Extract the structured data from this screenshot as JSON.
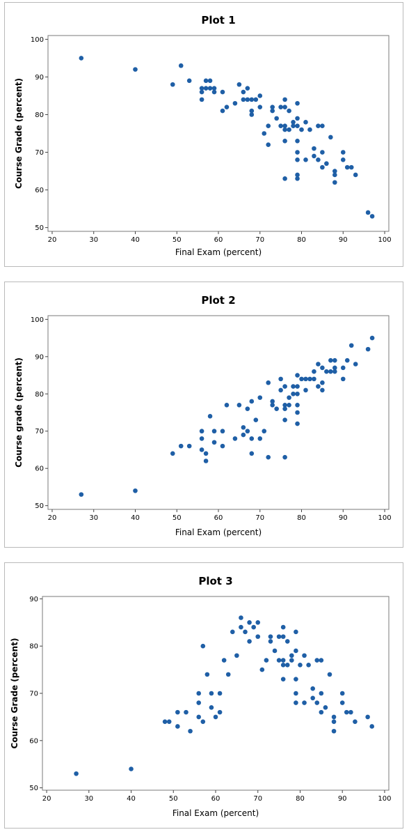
{
  "chart_data": [
    {
      "type": "scatter",
      "title": "Plot 1",
      "xlabel": "Final Exam (percent)",
      "ylabel": "Course Grade (percent)",
      "xlim": [
        19,
        101
      ],
      "ylim": [
        49,
        101
      ],
      "xticks": [
        "20",
        "30",
        "40",
        "50",
        "60",
        "70",
        "80",
        "90",
        "100"
      ],
      "yticks": [
        "50",
        "60",
        "70",
        "80",
        "90",
        "100"
      ],
      "color": "#1f5fa6",
      "points": [
        [
          27,
          95
        ],
        [
          40,
          92
        ],
        [
          49,
          88
        ],
        [
          51,
          93
        ],
        [
          53,
          89
        ],
        [
          56,
          87
        ],
        [
          56,
          86
        ],
        [
          56,
          84
        ],
        [
          57,
          87
        ],
        [
          57,
          89
        ],
        [
          58,
          89
        ],
        [
          58,
          87
        ],
        [
          59,
          87
        ],
        [
          59,
          86
        ],
        [
          61,
          86
        ],
        [
          61,
          81
        ],
        [
          62,
          82
        ],
        [
          64,
          83
        ],
        [
          65,
          88
        ],
        [
          66,
          86
        ],
        [
          66,
          84
        ],
        [
          67,
          87
        ],
        [
          67,
          84
        ],
        [
          68,
          84
        ],
        [
          68,
          81
        ],
        [
          68,
          80
        ],
        [
          69,
          84
        ],
        [
          70,
          85
        ],
        [
          70,
          82
        ],
        [
          71,
          75
        ],
        [
          72,
          72
        ],
        [
          72,
          77
        ],
        [
          73,
          82
        ],
        [
          73,
          81
        ],
        [
          74,
          79
        ],
        [
          75,
          77
        ],
        [
          75,
          82
        ],
        [
          76,
          84
        ],
        [
          76,
          82
        ],
        [
          76,
          77
        ],
        [
          76,
          76
        ],
        [
          76,
          73
        ],
        [
          76,
          63
        ],
        [
          77,
          81
        ],
        [
          77,
          76
        ],
        [
          78,
          77
        ],
        [
          78,
          78
        ],
        [
          79,
          83
        ],
        [
          79,
          79
        ],
        [
          79,
          77
        ],
        [
          79,
          73
        ],
        [
          79,
          70
        ],
        [
          79,
          68
        ],
        [
          79,
          64
        ],
        [
          79,
          63
        ],
        [
          80,
          76
        ],
        [
          81,
          78
        ],
        [
          81,
          68
        ],
        [
          82,
          76
        ],
        [
          83,
          71
        ],
        [
          83,
          69
        ],
        [
          84,
          77
        ],
        [
          84,
          68
        ],
        [
          85,
          77
        ],
        [
          85,
          70
        ],
        [
          85,
          66
        ],
        [
          86,
          67
        ],
        [
          87,
          74
        ],
        [
          88,
          65
        ],
        [
          88,
          64
        ],
        [
          88,
          62
        ],
        [
          90,
          70
        ],
        [
          90,
          68
        ],
        [
          91,
          66
        ],
        [
          92,
          66
        ],
        [
          93,
          64
        ],
        [
          96,
          54
        ],
        [
          97,
          53
        ]
      ]
    },
    {
      "type": "scatter",
      "title": "Plot 2",
      "xlabel": "Final Exam (percent)",
      "ylabel": "Course grade (percent)",
      "xlim": [
        19,
        101
      ],
      "ylim": [
        49,
        101
      ],
      "xticks": [
        "20",
        "30",
        "40",
        "50",
        "60",
        "70",
        "80",
        "90",
        "100"
      ],
      "yticks": [
        "50",
        "60",
        "70",
        "80",
        "90",
        "100"
      ],
      "color": "#1f5fa6",
      "points": [
        [
          27,
          53
        ],
        [
          40,
          54
        ],
        [
          49,
          64
        ],
        [
          51,
          66
        ],
        [
          53,
          66
        ],
        [
          56,
          70
        ],
        [
          56,
          68
        ],
        [
          56,
          65
        ],
        [
          57,
          64
        ],
        [
          57,
          62
        ],
        [
          58,
          74
        ],
        [
          59,
          70
        ],
        [
          59,
          67
        ],
        [
          61,
          70
        ],
        [
          61,
          66
        ],
        [
          62,
          77
        ],
        [
          64,
          68
        ],
        [
          65,
          77
        ],
        [
          66,
          71
        ],
        [
          66,
          69
        ],
        [
          67,
          76
        ],
        [
          67,
          70
        ],
        [
          68,
          78
        ],
        [
          68,
          68
        ],
        [
          68,
          64
        ],
        [
          69,
          73
        ],
        [
          70,
          79
        ],
        [
          70,
          68
        ],
        [
          71,
          70
        ],
        [
          72,
          83
        ],
        [
          72,
          63
        ],
        [
          73,
          78
        ],
        [
          73,
          77
        ],
        [
          74,
          76
        ],
        [
          75,
          84
        ],
        [
          75,
          81
        ],
        [
          76,
          82
        ],
        [
          76,
          77
        ],
        [
          76,
          76
        ],
        [
          76,
          73
        ],
        [
          76,
          63
        ],
        [
          77,
          79
        ],
        [
          77,
          77
        ],
        [
          78,
          80
        ],
        [
          78,
          82
        ],
        [
          79,
          85
        ],
        [
          79,
          82
        ],
        [
          79,
          80
        ],
        [
          79,
          77
        ],
        [
          79,
          75
        ],
        [
          79,
          72
        ],
        [
          80,
          84
        ],
        [
          81,
          84
        ],
        [
          81,
          81
        ],
        [
          82,
          84
        ],
        [
          83,
          84
        ],
        [
          83,
          86
        ],
        [
          84,
          88
        ],
        [
          84,
          82
        ],
        [
          85,
          87
        ],
        [
          85,
          83
        ],
        [
          85,
          81
        ],
        [
          86,
          86
        ],
        [
          87,
          89
        ],
        [
          87,
          86
        ],
        [
          88,
          87
        ],
        [
          88,
          89
        ],
        [
          88,
          86
        ],
        [
          90,
          87
        ],
        [
          90,
          84
        ],
        [
          91,
          89
        ],
        [
          92,
          93
        ],
        [
          93,
          88
        ],
        [
          96,
          92
        ],
        [
          97,
          95
        ]
      ]
    },
    {
      "type": "scatter",
      "title": "Plot 3",
      "xlabel": "Final Exam (percent)",
      "ylabel": "Course Grade (percent)",
      "xlim": [
        19,
        101
      ],
      "ylim": [
        49.5,
        90.5
      ],
      "xticks": [
        "20",
        "30",
        "40",
        "50",
        "60",
        "70",
        "80",
        "90",
        "100"
      ],
      "yticks": [
        "50",
        "60",
        "70",
        "80",
        "90"
      ],
      "color": "#1f5fa6",
      "points": [
        [
          27,
          53
        ],
        [
          40,
          54
        ],
        [
          48,
          64
        ],
        [
          49,
          64
        ],
        [
          51,
          63
        ],
        [
          51,
          66
        ],
        [
          53,
          66
        ],
        [
          54,
          62
        ],
        [
          56,
          70
        ],
        [
          56,
          68
        ],
        [
          56,
          65
        ],
        [
          57,
          80
        ],
        [
          57,
          64
        ],
        [
          58,
          74
        ],
        [
          59,
          70
        ],
        [
          59,
          67
        ],
        [
          60,
          65
        ],
        [
          61,
          70
        ],
        [
          61,
          66
        ],
        [
          62,
          77
        ],
        [
          63,
          74
        ],
        [
          64,
          83
        ],
        [
          65,
          78
        ],
        [
          66,
          86
        ],
        [
          66,
          84
        ],
        [
          67,
          83
        ],
        [
          68,
          85
        ],
        [
          68,
          81
        ],
        [
          69,
          84
        ],
        [
          70,
          85
        ],
        [
          70,
          82
        ],
        [
          71,
          75
        ],
        [
          72,
          77
        ],
        [
          73,
          82
        ],
        [
          73,
          81
        ],
        [
          74,
          79
        ],
        [
          75,
          82
        ],
        [
          75,
          77
        ],
        [
          76,
          84
        ],
        [
          76,
          82
        ],
        [
          76,
          77
        ],
        [
          76,
          76
        ],
        [
          76,
          73
        ],
        [
          77,
          81
        ],
        [
          77,
          76
        ],
        [
          78,
          78
        ],
        [
          78,
          77
        ],
        [
          79,
          83
        ],
        [
          79,
          79
        ],
        [
          79,
          73
        ],
        [
          79,
          70
        ],
        [
          79,
          68
        ],
        [
          80,
          76
        ],
        [
          81,
          78
        ],
        [
          81,
          68
        ],
        [
          82,
          76
        ],
        [
          83,
          71
        ],
        [
          83,
          69
        ],
        [
          84,
          77
        ],
        [
          84,
          68
        ],
        [
          85,
          77
        ],
        [
          85,
          70
        ],
        [
          85,
          66
        ],
        [
          86,
          67
        ],
        [
          87,
          74
        ],
        [
          88,
          65
        ],
        [
          88,
          64
        ],
        [
          88,
          62
        ],
        [
          90,
          70
        ],
        [
          90,
          68
        ],
        [
          91,
          66
        ],
        [
          92,
          66
        ],
        [
          93,
          64
        ],
        [
          96,
          65
        ],
        [
          97,
          63
        ]
      ]
    }
  ]
}
